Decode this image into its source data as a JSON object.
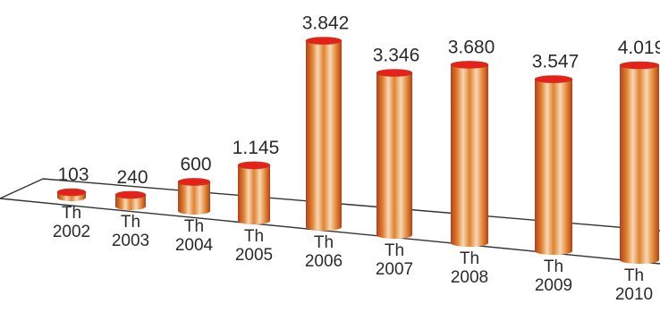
{
  "chart_data": {
    "type": "bar",
    "style": "3d-cylinder",
    "categories": [
      "Th\n2002",
      "Th\n2003",
      "Th\n2004",
      "Th\n2005",
      "Th\n2006",
      "Th\n2007",
      "Th\n2008",
      "Th\n2009",
      "Th\n2010"
    ],
    "values": [
      103,
      240,
      600,
      1145,
      3842,
      3346,
      3680,
      3547,
      4019
    ],
    "value_labels": [
      "103",
      "240",
      "600",
      "1.145",
      "3.842",
      "3.346",
      "3.680",
      "3.547",
      "4.019"
    ],
    "title": "",
    "xlabel": "",
    "ylabel": "",
    "ylim": [
      0,
      4019
    ],
    "grid": false,
    "legend": "none",
    "colors": {
      "bar_main": "#e1822e",
      "bar_light": "#f6d8b6",
      "bar_dark": "#b2401c",
      "top_cap": "#e8201c",
      "baseline": "#333333"
    }
  }
}
